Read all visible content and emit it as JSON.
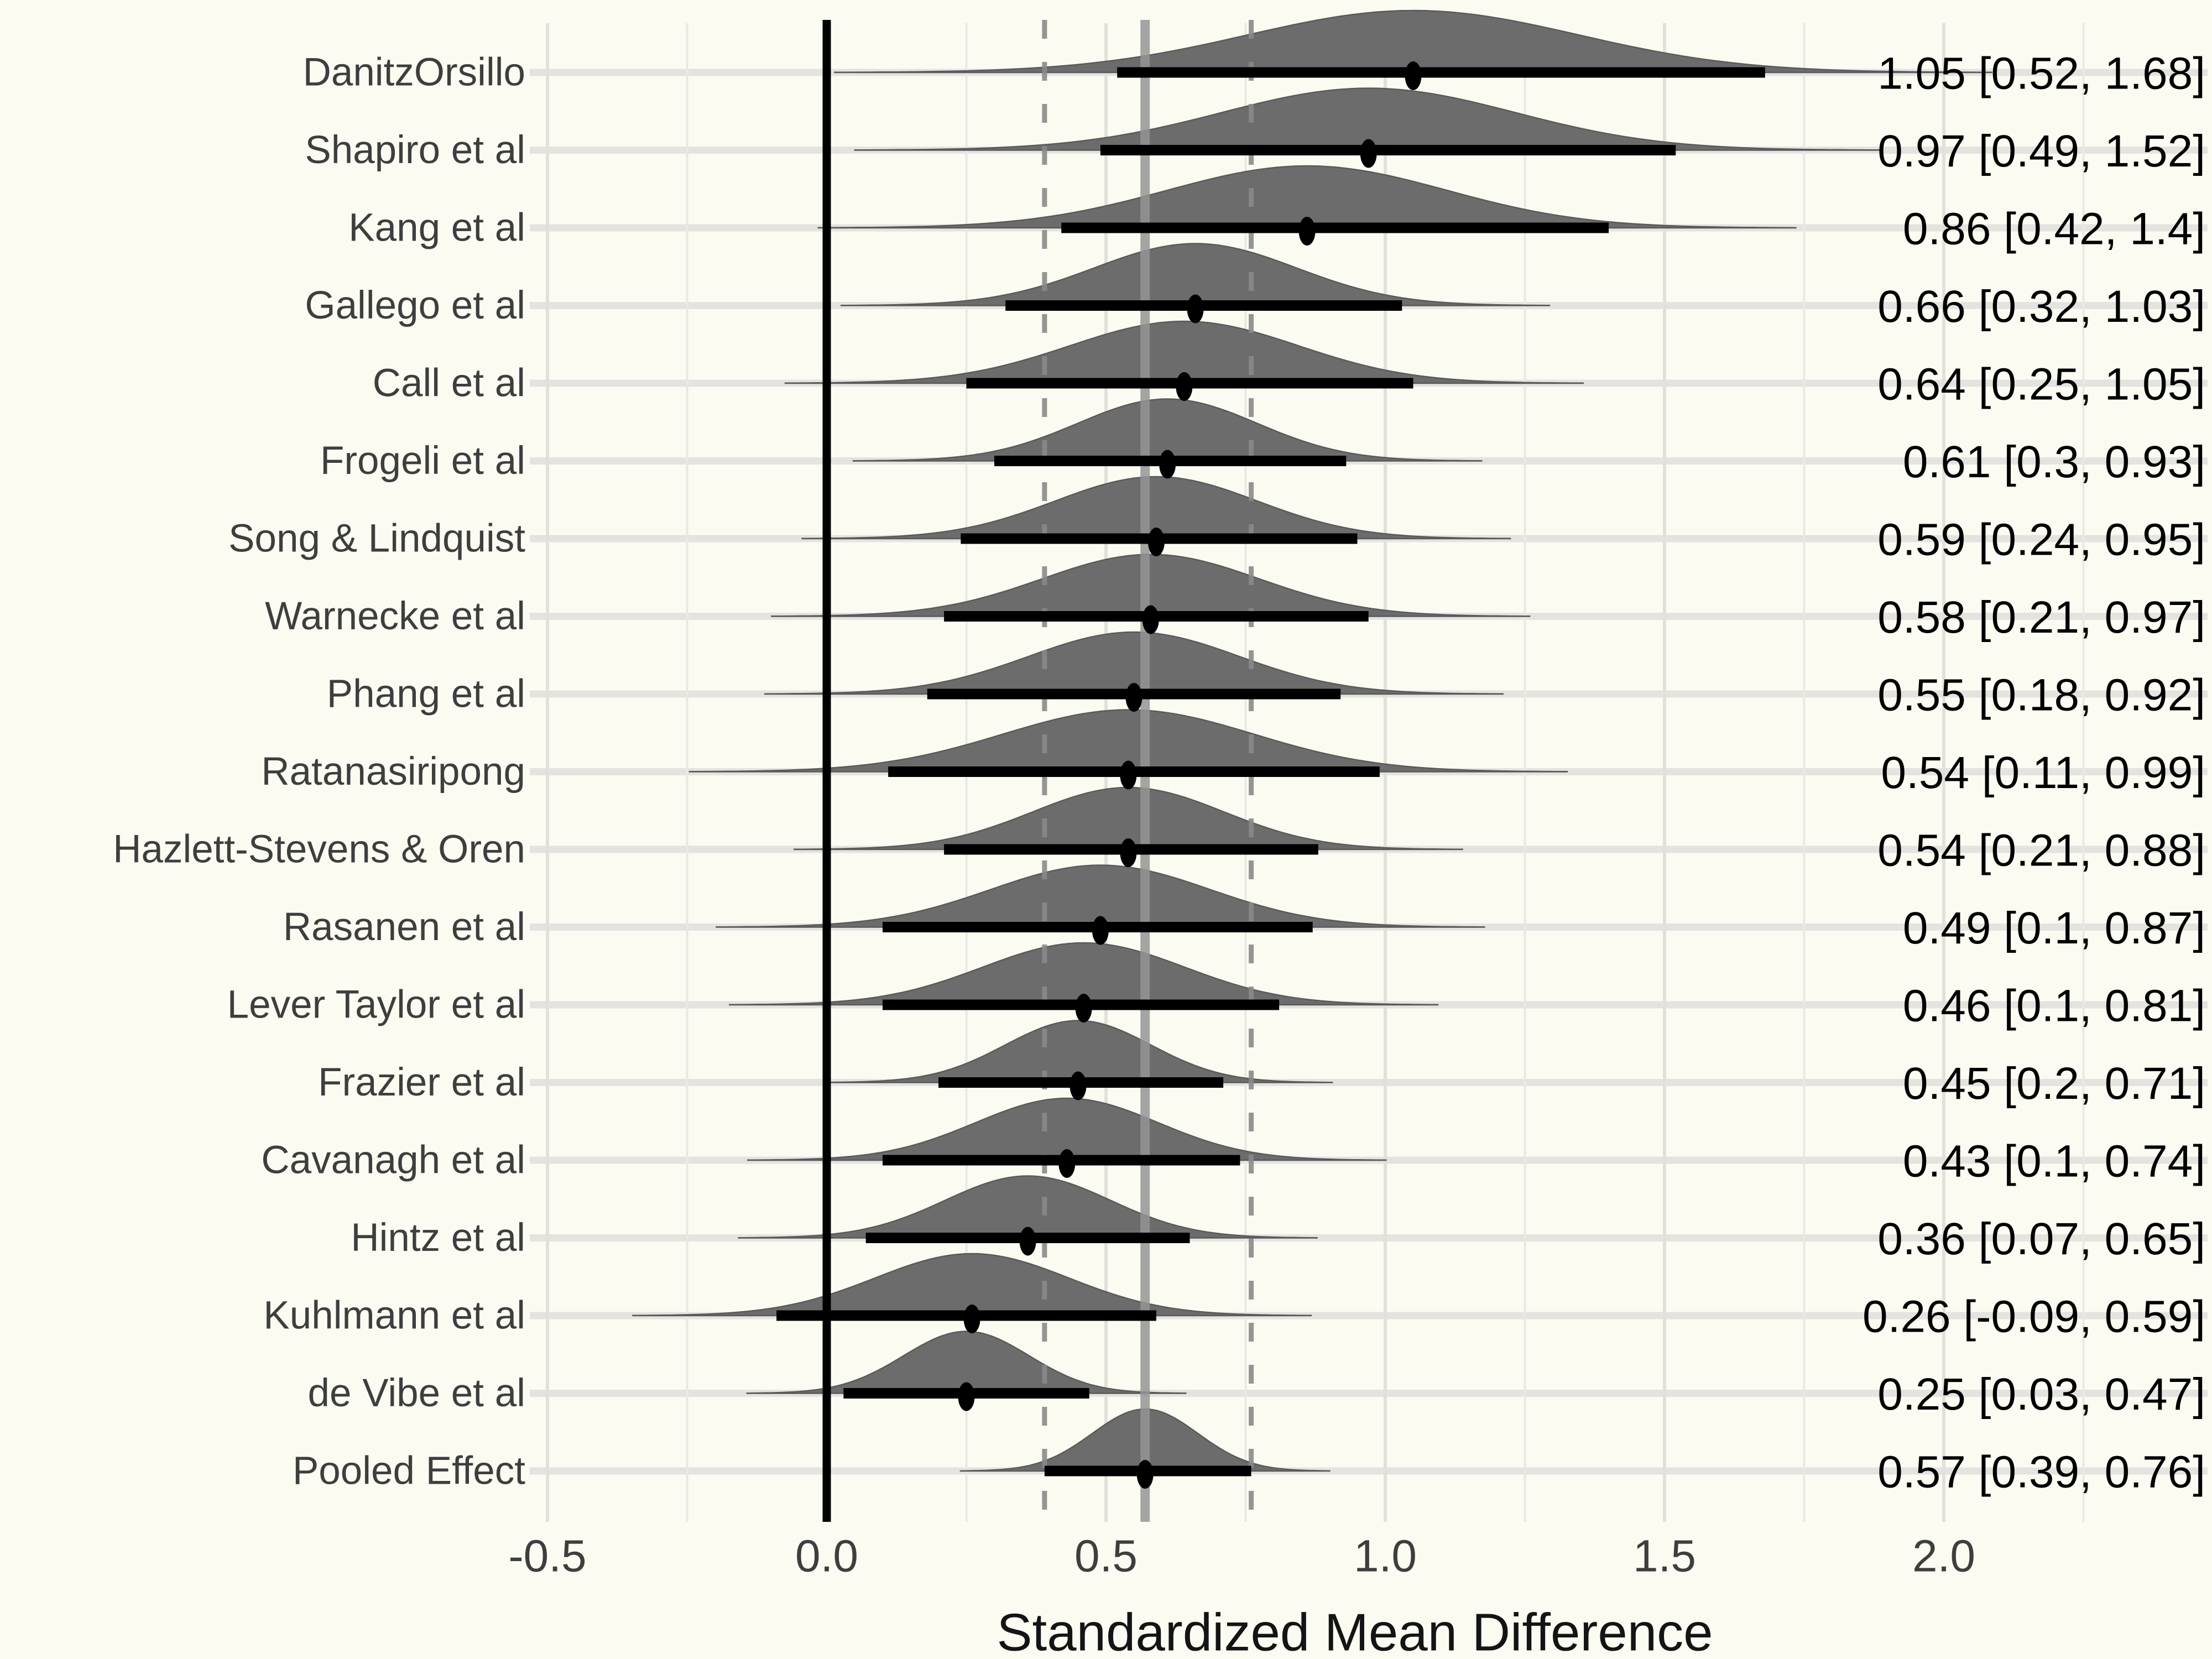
{
  "chart_data": {
    "type": "area",
    "subtype": "ridgeline-forest-halfeye",
    "title": "",
    "xlabel": "Standardized Mean Difference",
    "ylabel": "",
    "xlim": [
      -0.53,
      2.47
    ],
    "grid": "on",
    "legend": "none",
    "x_major_ticks": [
      -0.5,
      0.0,
      0.5,
      1.0,
      1.5,
      2.0
    ],
    "x_major_tick_labels": [
      "-0.5",
      "0.0",
      "0.5",
      "1.0",
      "1.5",
      "2.0"
    ],
    "x_minor_ticks": [
      -0.25,
      0.25,
      0.75,
      1.25,
      1.75,
      2.25
    ],
    "reference_lines": {
      "zero_line": 0.0,
      "pooled_mean_line": 0.57,
      "pooled_interval_dashed_lines": [
        0.39,
        0.76
      ]
    },
    "studies": [
      {
        "label": "DanitzOrsillo",
        "mean": 1.05,
        "lower": 0.52,
        "upper": 1.68,
        "annotation": "1.05 [0.52, 1.68]"
      },
      {
        "label": "Shapiro et al",
        "mean": 0.97,
        "lower": 0.49,
        "upper": 1.52,
        "annotation": "0.97 [0.49, 1.52]"
      },
      {
        "label": "Kang et al",
        "mean": 0.86,
        "lower": 0.42,
        "upper": 1.4,
        "annotation": "0.86 [0.42, 1.4]"
      },
      {
        "label": "Gallego et al",
        "mean": 0.66,
        "lower": 0.32,
        "upper": 1.03,
        "annotation": "0.66 [0.32, 1.03]"
      },
      {
        "label": "Call et al",
        "mean": 0.64,
        "lower": 0.25,
        "upper": 1.05,
        "annotation": "0.64 [0.25, 1.05]"
      },
      {
        "label": "Frogeli et al",
        "mean": 0.61,
        "lower": 0.3,
        "upper": 0.93,
        "annotation": "0.61 [0.3, 0.93]"
      },
      {
        "label": "Song & Lindquist",
        "mean": 0.59,
        "lower": 0.24,
        "upper": 0.95,
        "annotation": "0.59 [0.24, 0.95]"
      },
      {
        "label": "Warnecke et al",
        "mean": 0.58,
        "lower": 0.21,
        "upper": 0.97,
        "annotation": "0.58 [0.21, 0.97]"
      },
      {
        "label": "Phang et al",
        "mean": 0.55,
        "lower": 0.18,
        "upper": 0.92,
        "annotation": "0.55 [0.18, 0.92]"
      },
      {
        "label": "Ratanasiripong",
        "mean": 0.54,
        "lower": 0.11,
        "upper": 0.99,
        "annotation": "0.54 [0.11, 0.99]"
      },
      {
        "label": "Hazlett-Stevens & Oren",
        "mean": 0.54,
        "lower": 0.21,
        "upper": 0.88,
        "annotation": "0.54 [0.21, 0.88]"
      },
      {
        "label": "Rasanen et al",
        "mean": 0.49,
        "lower": 0.1,
        "upper": 0.87,
        "annotation": "0.49 [0.1, 0.87]"
      },
      {
        "label": "Lever Taylor et al",
        "mean": 0.46,
        "lower": 0.1,
        "upper": 0.81,
        "annotation": "0.46 [0.1, 0.81]"
      },
      {
        "label": "Frazier et al",
        "mean": 0.45,
        "lower": 0.2,
        "upper": 0.71,
        "annotation": "0.45 [0.2, 0.71]"
      },
      {
        "label": "Cavanagh et al",
        "mean": 0.43,
        "lower": 0.1,
        "upper": 0.74,
        "annotation": "0.43 [0.1, 0.74]"
      },
      {
        "label": "Hintz et al",
        "mean": 0.36,
        "lower": 0.07,
        "upper": 0.65,
        "annotation": "0.36 [0.07, 0.65]"
      },
      {
        "label": "Kuhlmann et al",
        "mean": 0.26,
        "lower": -0.09,
        "upper": 0.59,
        "annotation": "0.26 [-0.09, 0.59]"
      },
      {
        "label": "de Vibe et al",
        "mean": 0.25,
        "lower": 0.03,
        "upper": 0.47,
        "annotation": "0.25 [0.03, 0.47]"
      },
      {
        "label": "Pooled Effect",
        "mean": 0.57,
        "lower": 0.39,
        "upper": 0.76,
        "annotation": "0.57 [0.39, 0.76]"
      }
    ],
    "colors": {
      "background": "#FCFBF2",
      "slab_fill": "#6C6C6C",
      "slab_stroke": "#5A5A5A",
      "interval": "#000000",
      "point": "#000000",
      "zero_line": "#000000",
      "pooled_line": "#949494",
      "dashed_line": "#898989",
      "grid_major": "#E2E0DA",
      "grid_minor": "#EAE8E2",
      "grid_row": "#E5E3DF",
      "axis_text": "#3E3E3E",
      "annotation_text": "#000000",
      "axis_title_text": "#141414"
    }
  }
}
